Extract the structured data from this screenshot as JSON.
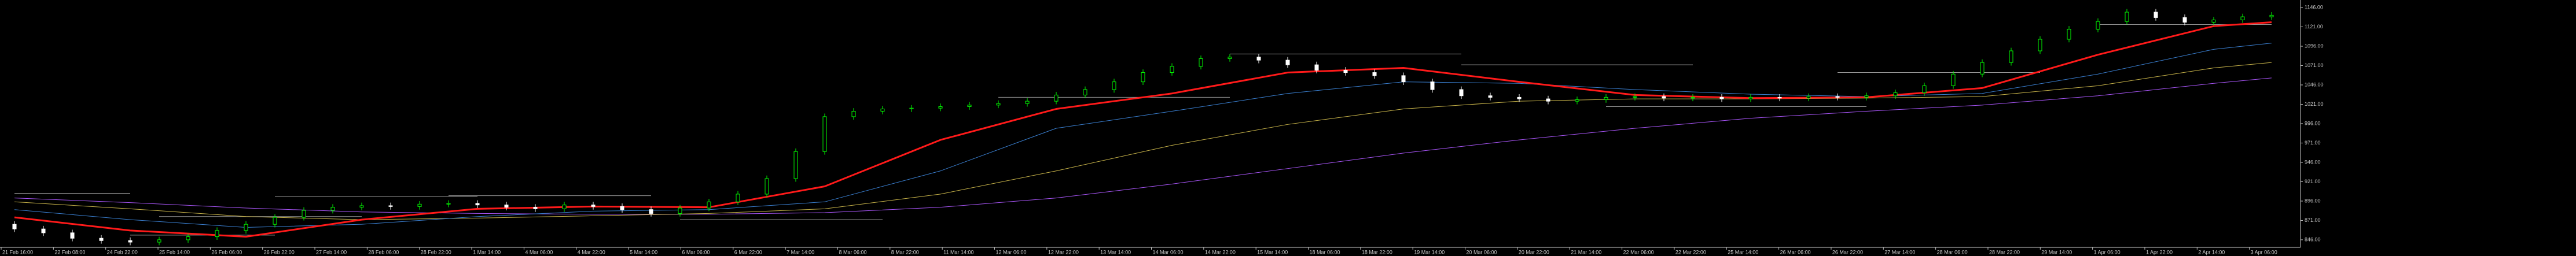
{
  "chart_data": {
    "type": "candlestick",
    "ylim": [
      838.5,
      1155.7
    ],
    "yticks": [
      {
        "value": 1146,
        "label": "1146.00"
      },
      {
        "value": 1121,
        "label": "1121.00"
      },
      {
        "value": 1096,
        "label": "1096.00"
      },
      {
        "value": 1071,
        "label": "1071.00"
      },
      {
        "value": 1046,
        "label": "1046.00"
      },
      {
        "value": 1021,
        "label": "1021.00"
      },
      {
        "value": 996,
        "label": "996.00"
      },
      {
        "value": 971,
        "label": "971.00"
      },
      {
        "value": 946,
        "label": "946.00"
      },
      {
        "value": 921,
        "label": "921.00"
      },
      {
        "value": 896,
        "label": "896.00"
      },
      {
        "value": 871,
        "label": "871.00"
      },
      {
        "value": 846,
        "label": "846.00"
      }
    ],
    "bull_color": "#00ff00",
    "bear_color": "#ffffff",
    "candles": [
      [
        866,
        870,
        856,
        860
      ],
      [
        860,
        864,
        851,
        855
      ],
      [
        855,
        859,
        844,
        848
      ],
      [
        848,
        852,
        841,
        845
      ],
      [
        845,
        849,
        839,
        843
      ],
      [
        843,
        850,
        839,
        846
      ],
      [
        846,
        854,
        842,
        850
      ],
      [
        850,
        862,
        846,
        858
      ],
      [
        858,
        870,
        854,
        866
      ],
      [
        866,
        879,
        862,
        875
      ],
      [
        875,
        888,
        871,
        884
      ],
      [
        884,
        892,
        880,
        888
      ],
      [
        888,
        894,
        884,
        890
      ],
      [
        890,
        894,
        885,
        889
      ],
      [
        889,
        896,
        885,
        892
      ],
      [
        892,
        897,
        888,
        893
      ],
      [
        893,
        897,
        887,
        891
      ],
      [
        891,
        895,
        884,
        888
      ],
      [
        888,
        892,
        882,
        886
      ],
      [
        886,
        895,
        882,
        891
      ],
      [
        891,
        895,
        885,
        889
      ],
      [
        889,
        893,
        881,
        885
      ],
      [
        885,
        889,
        876,
        880
      ],
      [
        880,
        891,
        876,
        887
      ],
      [
        887,
        899,
        883,
        895
      ],
      [
        895,
        909,
        891,
        905
      ],
      [
        905,
        929,
        901,
        925
      ],
      [
        925,
        964,
        921,
        960
      ],
      [
        960,
        1009,
        956,
        1005
      ],
      [
        1005,
        1016,
        1001,
        1012
      ],
      [
        1012,
        1019,
        1008,
        1015
      ],
      [
        1015,
        1020,
        1011,
        1016
      ],
      [
        1016,
        1022,
        1012,
        1018
      ],
      [
        1018,
        1024,
        1014,
        1020
      ],
      [
        1020,
        1026,
        1016,
        1022
      ],
      [
        1022,
        1029,
        1018,
        1025
      ],
      [
        1025,
        1037,
        1021,
        1033
      ],
      [
        1033,
        1044,
        1029,
        1040
      ],
      [
        1040,
        1054,
        1036,
        1050
      ],
      [
        1050,
        1066,
        1046,
        1062
      ],
      [
        1062,
        1074,
        1058,
        1070
      ],
      [
        1070,
        1084,
        1066,
        1080
      ],
      [
        1080,
        1086,
        1076,
        1082
      ],
      [
        1082,
        1086,
        1074,
        1078
      ],
      [
        1078,
        1082,
        1068,
        1072
      ],
      [
        1072,
        1076,
        1061,
        1065
      ],
      [
        1065,
        1069,
        1058,
        1062
      ],
      [
        1062,
        1066,
        1054,
        1058
      ],
      [
        1058,
        1062,
        1046,
        1050
      ],
      [
        1050,
        1054,
        1036,
        1040
      ],
      [
        1040,
        1044,
        1028,
        1032
      ],
      [
        1032,
        1036,
        1026,
        1030
      ],
      [
        1030,
        1034,
        1024,
        1028
      ],
      [
        1028,
        1032,
        1021,
        1025
      ],
      [
        1025,
        1031,
        1021,
        1027
      ],
      [
        1027,
        1034,
        1023,
        1030
      ],
      [
        1030,
        1035,
        1026,
        1031
      ],
      [
        1031,
        1035,
        1025,
        1029
      ],
      [
        1029,
        1034,
        1025,
        1030
      ],
      [
        1030,
        1034,
        1024,
        1028
      ],
      [
        1028,
        1034,
        1024,
        1030
      ],
      [
        1030,
        1034,
        1025,
        1029
      ],
      [
        1029,
        1035,
        1025,
        1031
      ],
      [
        1031,
        1035,
        1026,
        1030
      ],
      [
        1030,
        1036,
        1026,
        1032
      ],
      [
        1032,
        1040,
        1028,
        1036
      ],
      [
        1036,
        1049,
        1032,
        1045
      ],
      [
        1045,
        1064,
        1041,
        1060
      ],
      [
        1060,
        1079,
        1056,
        1075
      ],
      [
        1075,
        1094,
        1071,
        1090
      ],
      [
        1090,
        1109,
        1086,
        1105
      ],
      [
        1105,
        1122,
        1101,
        1118
      ],
      [
        1118,
        1132,
        1114,
        1128
      ],
      [
        1128,
        1144,
        1124,
        1140
      ],
      [
        1140,
        1144,
        1129,
        1133
      ],
      [
        1133,
        1137,
        1123,
        1127
      ],
      [
        1127,
        1134,
        1123,
        1130
      ],
      [
        1130,
        1138,
        1126,
        1134
      ],
      [
        1134,
        1140,
        1130,
        1136
      ]
    ],
    "ma_index": [
      0,
      4,
      8,
      12,
      16,
      20,
      24,
      28,
      32,
      36,
      40,
      44,
      48,
      52,
      56,
      60,
      64,
      68,
      72,
      76,
      78
    ],
    "moving_averages": [
      {
        "color": "#a855f7",
        "width": 1,
        "values": [
          900,
          894,
          887,
          882,
          880,
          879,
          879,
          881,
          888,
          900,
          918,
          938,
          958,
          975,
          990,
          1003,
          1012,
          1020,
          1032,
          1048,
          1055
        ]
      },
      {
        "color": "#c8b44a",
        "width": 1,
        "values": [
          895,
          886,
          876,
          872,
          874,
          877,
          880,
          886,
          905,
          935,
          968,
          995,
          1015,
          1025,
          1028,
          1028,
          1029,
          1031,
          1045,
          1068,
          1075
        ]
      },
      {
        "color": "#3a7fd0",
        "width": 1,
        "values": [
          885,
          872,
          862,
          866,
          876,
          883,
          885,
          895,
          935,
          990,
          1012,
          1035,
          1050,
          1048,
          1040,
          1034,
          1031,
          1035,
          1060,
          1092,
          1100
        ]
      },
      {
        "color": "#ff1a1a",
        "width": 3,
        "values": [
          875,
          858,
          850,
          872,
          886,
          889,
          888,
          915,
          975,
          1015,
          1035,
          1062,
          1068,
          1050,
          1033,
          1029,
          1030,
          1042,
          1085,
          1122,
          1127
        ]
      }
    ],
    "levels": [
      {
        "from": 0,
        "to": 4,
        "value": 906
      },
      {
        "from": 4,
        "to": 9,
        "value": 852
      },
      {
        "from": 5,
        "to": 12,
        "value": 876
      },
      {
        "from": 9,
        "to": 16,
        "value": 902
      },
      {
        "from": 15,
        "to": 22,
        "value": 903
      },
      {
        "from": 23,
        "to": 30,
        "value": 872
      },
      {
        "from": 34,
        "to": 42,
        "value": 1030
      },
      {
        "from": 42,
        "to": 50,
        "value": 1086
      },
      {
        "from": 50,
        "to": 58,
        "value": 1072
      },
      {
        "from": 55,
        "to": 64,
        "value": 1018
      },
      {
        "from": 63,
        "to": 70,
        "value": 1062
      },
      {
        "from": 72,
        "to": 78,
        "value": 1124
      }
    ],
    "time_labels": [
      "21 Feb 16:00",
      "22 Feb 08:00",
      "24 Feb 22:00",
      "25 Feb 14:00",
      "26 Feb 06:00",
      "26 Feb 22:00",
      "27 Feb 14:00",
      "28 Feb 06:00",
      "28 Feb 22:00",
      "1 Mar 14:00",
      "4 Mar 06:00",
      "4 Mar 22:00",
      "5 Mar 14:00",
      "6 Mar 06:00",
      "6 Mar 22:00",
      "7 Mar 14:00",
      "8 Mar 06:00",
      "8 Mar 22:00",
      "11 Mar 14:00",
      "12 Mar 06:00",
      "12 Mar 22:00",
      "13 Mar 14:00",
      "14 Mar 06:00",
      "14 Mar 22:00",
      "15 Mar 14:00",
      "18 Mar 06:00",
      "18 Mar 22:00",
      "19 Mar 14:00",
      "20 Mar 06:00",
      "20 Mar 22:00",
      "21 Mar 14:00",
      "22 Mar 06:00",
      "22 Mar 22:00",
      "25 Mar 14:00",
      "26 Mar 06:00",
      "26 Mar 22:00",
      "27 Mar 14:00",
      "28 Mar 06:00",
      "28 Mar 22:00",
      "29 Mar 14:00",
      "1 Apr 06:00",
      "1 Apr 22:00",
      "2 Apr 14:00",
      "3 Apr 06:00"
    ]
  }
}
